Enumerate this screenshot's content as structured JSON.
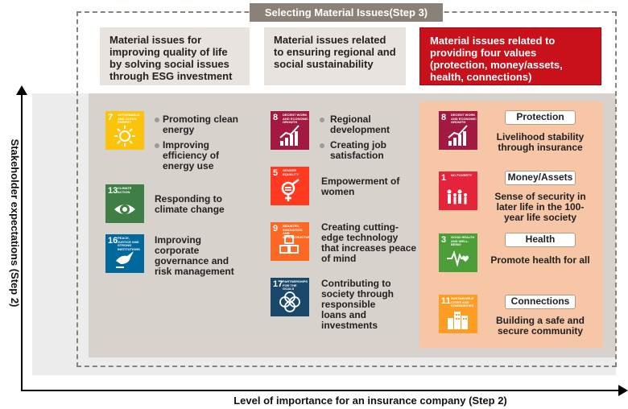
{
  "header": {
    "title": "Selecting Material Issues(Step 3)"
  },
  "columns": [
    {
      "text": "Material issues for improving quality of life by solving social issues through ESG investment"
    },
    {
      "text": "Material issues related to ensuring regional and social sustainability"
    },
    {
      "text": "Material issues related to providing four values (protection, money/assets, health, connections)",
      "color": "#c8111b"
    }
  ],
  "axes": {
    "y_label": "Stakeholder expectations (Step 2)",
    "x_label": "Level of importance for an insurance company (Step 2)"
  },
  "sdg": {
    "g7": {
      "num": "7",
      "caption": "AFFORDABLE AND CLEAN ENERGY",
      "color": "#fcc30b",
      "icon": "sun-icon"
    },
    "g13": {
      "num": "13",
      "caption": "CLIMATE ACTION",
      "color": "#3f7e44",
      "icon": "eye-globe-icon"
    },
    "g16": {
      "num": "16",
      "caption": "PEACE, JUSTICE AND STRONG INSTITUTIONS",
      "color": "#00689d",
      "icon": "dove-icon"
    },
    "g8a": {
      "num": "8",
      "caption": "DECENT WORK AND ECONOMIC GROWTH",
      "color": "#a21942",
      "icon": "growth-chart-icon"
    },
    "g5": {
      "num": "5",
      "caption": "GENDER EQUALITY",
      "color": "#ff3a21",
      "icon": "gender-equality-icon"
    },
    "g9": {
      "num": "9",
      "caption": "INDUSTRY, INNOVATION AND INFRASTRUCTURE",
      "color": "#fd6925",
      "icon": "cubes-icon"
    },
    "g17": {
      "num": "17",
      "caption": "PARTNERSHIPS FOR THE GOALS",
      "color": "#19486a",
      "icon": "flower-icon"
    },
    "g8b": {
      "num": "8",
      "caption": "DECENT WORK AND ECONOMIC GROWTH",
      "color": "#a21942",
      "icon": "growth-chart-icon"
    },
    "g1": {
      "num": "1",
      "caption": "NO POVERTY",
      "color": "#e5243b",
      "icon": "family-icon"
    },
    "g3": {
      "num": "3",
      "caption": "GOOD HEALTH AND WELL-BEING",
      "color": "#4c9f38",
      "icon": "heartbeat-icon"
    },
    "g11": {
      "num": "11",
      "caption": "SUSTAINABLE CITIES AND COMMUNITIES",
      "color": "#fd9d24",
      "icon": "buildings-icon"
    }
  },
  "col1": {
    "b1": "Promoting clean energy",
    "b2": "Improving efficiency of energy use",
    "t13": "Responding to climate change",
    "t16": "Improving corporate governance and risk management"
  },
  "col2": {
    "b1": "Regional development",
    "b2": "Creating job satisfaction",
    "t5": "Empowerment of women",
    "t9": "Creating cutting-edge technology that increases peace of mind",
    "t17": "Contributing to society through responsible loans and investments"
  },
  "col3": {
    "protection": {
      "label": "Protection",
      "desc": "Livelihood stability through insurance"
    },
    "money": {
      "label": "Money/Assets",
      "desc": "Sense of security in later life in the 100-year life society"
    },
    "health": {
      "label": "Health",
      "desc": "Promote health for all"
    },
    "connections": {
      "label": "Connections",
      "desc": "Building a safe and secure community"
    }
  }
}
